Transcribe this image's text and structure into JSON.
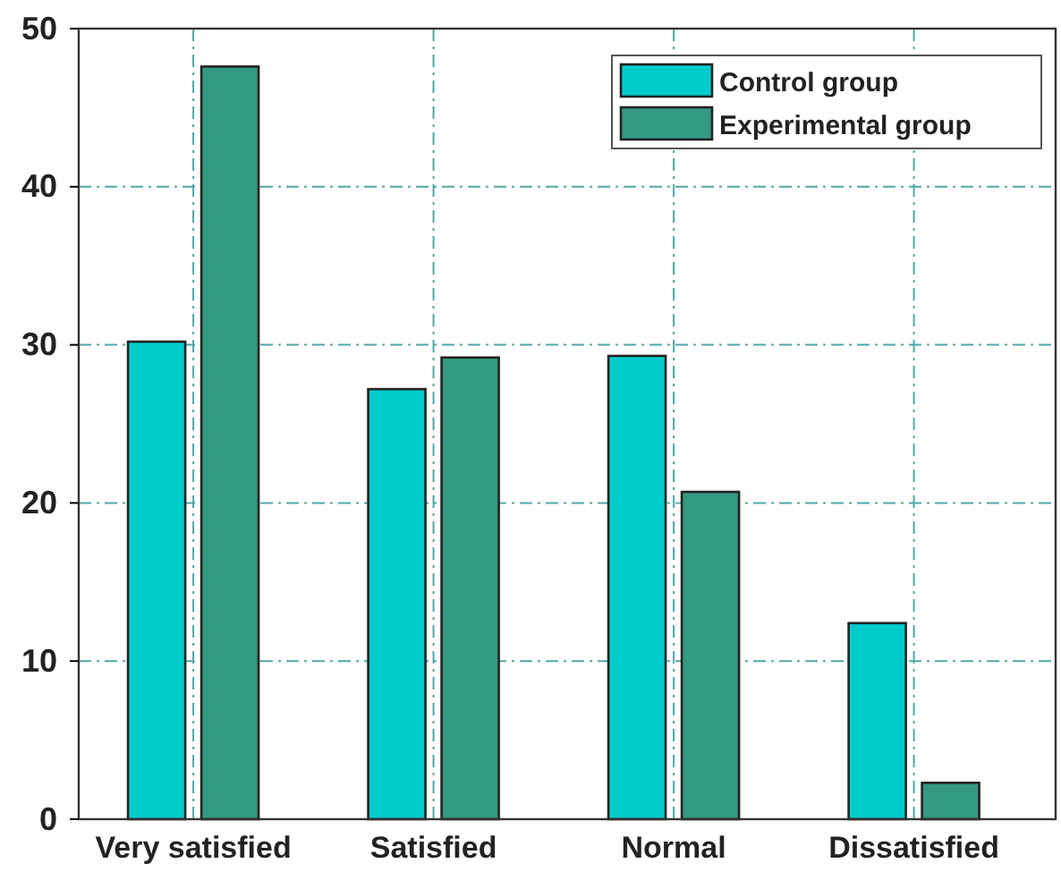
{
  "chart_data": {
    "type": "bar",
    "categories": [
      "Very satisfied",
      "Satisfied",
      "Normal",
      "Dissatisfied"
    ],
    "series": [
      {
        "name": "Control group",
        "color": "#00cccc",
        "values": [
          30.2,
          27.2,
          29.3,
          12.4
        ]
      },
      {
        "name": "Experimental group",
        "color": "#339980",
        "values": [
          47.6,
          29.2,
          20.7,
          2.3
        ]
      }
    ],
    "ylim": [
      0,
      50
    ],
    "yticks": [
      0,
      10,
      20,
      30,
      40,
      50
    ],
    "grid": true,
    "legend": "top right"
  }
}
